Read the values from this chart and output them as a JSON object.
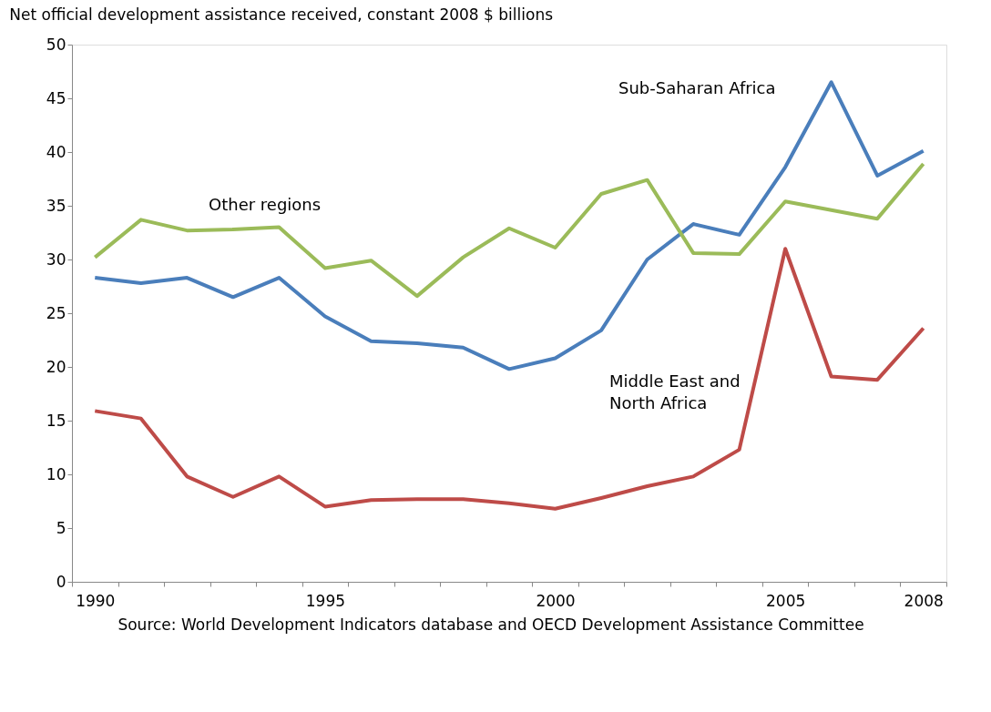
{
  "chart_data": {
    "type": "line",
    "title": "Net official development assistance received, constant 2008 $ billions",
    "categories": [
      "1990",
      null,
      null,
      null,
      null,
      "1995",
      null,
      null,
      null,
      null,
      "2000",
      null,
      null,
      null,
      null,
      "2005",
      null,
      null,
      "2008"
    ],
    "series": [
      {
        "name": "Sub-Saharan Africa",
        "color": "#4a7ebb",
        "values": [
          28.3,
          27.8,
          28.3,
          26.5,
          28.3,
          24.7,
          22.4,
          22.2,
          21.8,
          19.8,
          20.8,
          23.4,
          30.0,
          33.3,
          32.3,
          38.6,
          46.5,
          37.8,
          40.1
        ]
      },
      {
        "name": "Other regions",
        "color": "#9bbb59",
        "values": [
          30.2,
          33.7,
          32.7,
          32.8,
          33.0,
          29.2,
          29.9,
          26.6,
          30.2,
          32.9,
          31.1,
          36.1,
          37.4,
          30.6,
          30.5,
          35.4,
          34.6,
          33.8,
          38.9
        ]
      },
      {
        "name": "Middle East and North Africa",
        "color": "#be4b48",
        "values": [
          15.9,
          15.2,
          9.8,
          7.9,
          9.8,
          7.0,
          7.6,
          7.7,
          7.7,
          7.3,
          6.8,
          7.8,
          8.9,
          9.8,
          12.3,
          31.0,
          19.1,
          18.8,
          23.6
        ]
      }
    ],
    "ylim": [
      0,
      50
    ],
    "yticks": [
      0,
      5,
      10,
      15,
      20,
      25,
      30,
      35,
      40,
      45,
      50
    ],
    "grid": false,
    "legend": false,
    "marker": "none",
    "line_style": "solid",
    "annotations": [
      "Source: World Development Indicators database and OECD Development Assistance Committee"
    ]
  }
}
